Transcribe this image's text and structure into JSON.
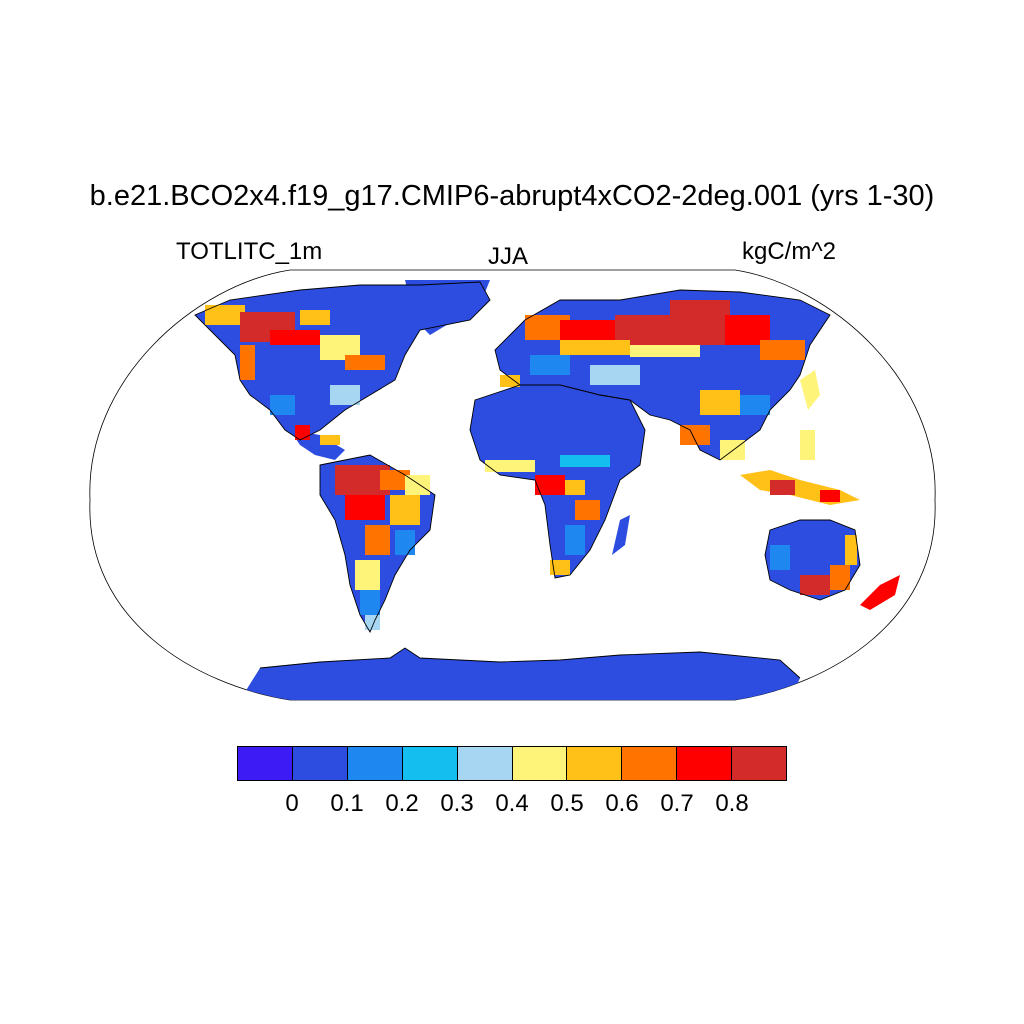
{
  "title": "b.e21.BCO2x4.f19_g17.CMIP6-abrupt4xCO2-2deg.001 (yrs 1-30)",
  "variable_label": "TOTLITC_1m",
  "season_label": "JJA",
  "units_label": "kgC/m^2",
  "colorbar": {
    "colors": [
      "#3c1bf5",
      "#2d4de0",
      "#1f88f0",
      "#14bff0",
      "#a6d6f2",
      "#fff47a",
      "#ffc017",
      "#ff7300",
      "#ff0000",
      "#d32a2a"
    ],
    "tick_labels": [
      "0",
      "0.1",
      "0.2",
      "0.3",
      "0.4",
      "0.5",
      "0.6",
      "0.7",
      "0.8"
    ]
  },
  "map": {
    "projection": "Robinson",
    "land_base_color": "#2d4de0"
  }
}
